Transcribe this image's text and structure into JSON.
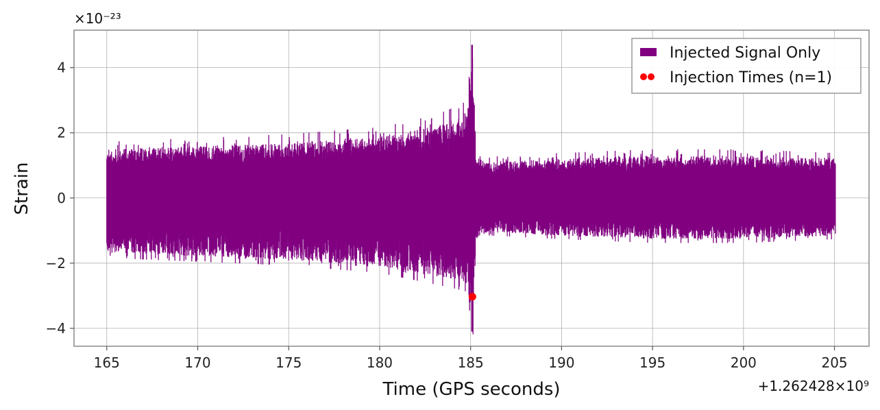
{
  "chart_data": {
    "type": "line",
    "xlabel": "Time (GPS seconds)",
    "ylabel": "Strain",
    "x_offset_label": "+1.262428×10⁹",
    "y_scale_label": "×10⁻²³",
    "xlim": [
      163.2,
      206.9
    ],
    "ylim": [
      -4.55,
      5.15
    ],
    "x_ticks": [
      165,
      170,
      175,
      180,
      185,
      190,
      195,
      200,
      205
    ],
    "x_tick_labels": [
      "165",
      "170",
      "175",
      "180",
      "185",
      "190",
      "195",
      "200",
      "205"
    ],
    "y_ticks": [
      -4,
      -2,
      0,
      2,
      4
    ],
    "y_tick_labels": [
      "−4",
      "−2",
      "0",
      "2",
      "4"
    ],
    "grid": true,
    "legend_position": "top-right",
    "legend": [
      "Injected Signal Only",
      "Injection Times (n=1)"
    ],
    "series": [
      {
        "name": "Injected Signal Only",
        "color": "#800080",
        "kind": "noise-band",
        "x_range": [
          165,
          205.05
        ],
        "envelope": {
          "t": [
            165,
            170,
            175,
            180,
            182,
            183,
            184,
            184.8,
            185.0,
            185.1,
            185.3,
            186,
            190,
            195,
            200,
            205.05
          ],
          "upper": [
            1.5,
            1.6,
            1.7,
            1.9,
            2.1,
            2.2,
            2.4,
            2.7,
            3.6,
            4.7,
            1.3,
            1.1,
            1.2,
            1.3,
            1.3,
            1.2
          ],
          "lower": [
            -1.6,
            -1.7,
            -1.8,
            -2.0,
            -2.2,
            -2.3,
            -2.4,
            -2.5,
            -3.2,
            -4.1,
            -1.2,
            -1.0,
            -1.1,
            -1.2,
            -1.2,
            -1.1
          ]
        }
      },
      {
        "name": "Injection Times (n=1)",
        "color": "#ff0000",
        "kind": "scatter",
        "points": [
          {
            "x": 185.1,
            "y": -3.03
          }
        ]
      }
    ]
  }
}
